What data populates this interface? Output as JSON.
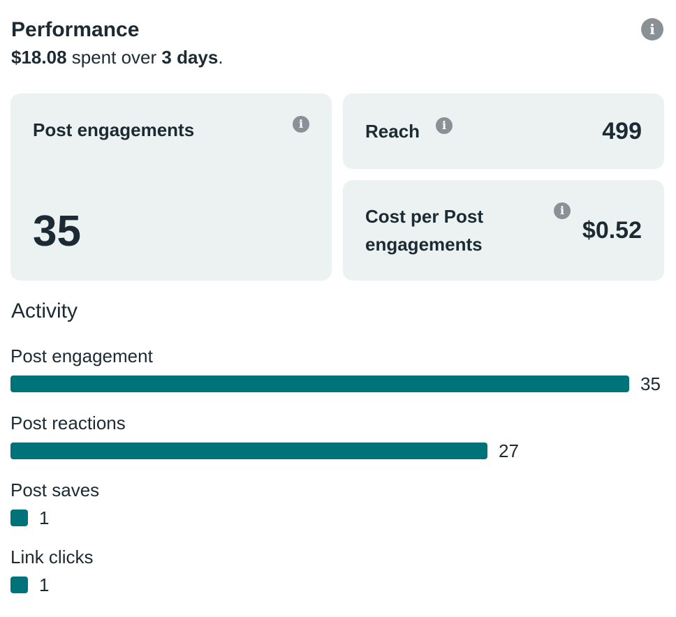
{
  "header": {
    "title": "Performance",
    "info_icon": "info-icon",
    "summary": {
      "amount": "$18.08",
      "middle": " spent over ",
      "duration": "3 days",
      "end": "."
    }
  },
  "metrics": {
    "post_engagements": {
      "label": "Post engagements",
      "value": "35"
    },
    "reach": {
      "label": "Reach",
      "value": "499"
    },
    "cost_per_post_engagement": {
      "label": "Cost per Post engagements",
      "value": "$0.52"
    }
  },
  "activity": {
    "title": "Activity",
    "bar_color": "#007279",
    "items": [
      {
        "label": "Post engagement",
        "value": 35,
        "display": "35"
      },
      {
        "label": "Post reactions",
        "value": 27,
        "display": "27"
      },
      {
        "label": "Post saves",
        "value": 1,
        "display": "1"
      },
      {
        "label": "Link clicks",
        "value": 1,
        "display": "1"
      }
    ]
  },
  "colors": {
    "text": "#1c2b33",
    "card_bg": "#ecf1f2",
    "icon_gray": "#8a9196",
    "accent": "#007279"
  }
}
